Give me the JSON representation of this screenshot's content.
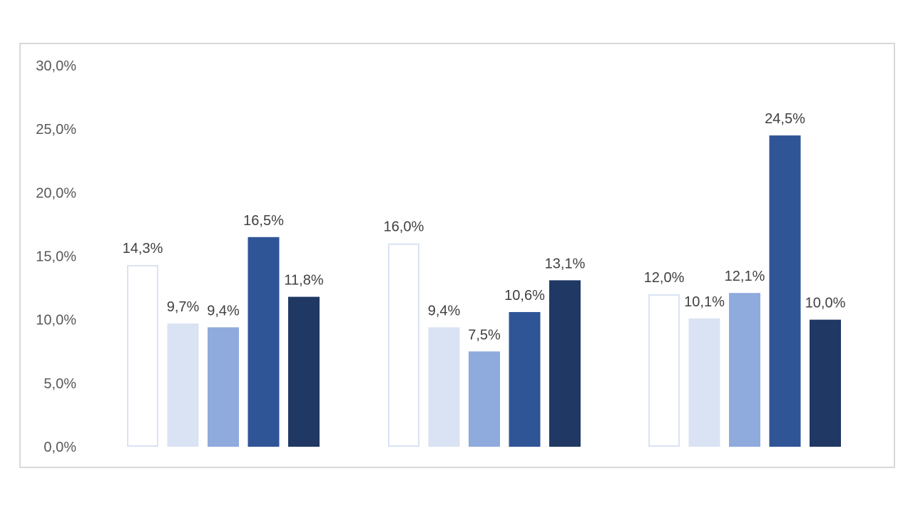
{
  "chart_data": {
    "type": "bar",
    "title": "",
    "xlabel": "",
    "ylabel": "",
    "ylim": [
      0,
      30
    ],
    "yticks": [
      0,
      5,
      10,
      15,
      20,
      25,
      30
    ],
    "ytick_labels": [
      "0,0%",
      "5,0%",
      "10,0%",
      "15,0%",
      "20,0%",
      "25,0%",
      "30,0%"
    ],
    "grid": false,
    "legend": "none",
    "categories": [
      "",
      "",
      ""
    ],
    "series": [
      {
        "fill": "#ffffff",
        "stroke": "#dae3f3",
        "values": [
          14.3,
          16.0,
          12.0
        ],
        "labels": [
          "14,3%",
          "16,0%",
          "12,0%"
        ]
      },
      {
        "fill": "#dae3f3",
        "stroke": "#dae3f3",
        "values": [
          9.7,
          9.4,
          10.1
        ],
        "labels": [
          "9,7%",
          "9,4%",
          "10,1%"
        ]
      },
      {
        "fill": "#8faadc",
        "stroke": "#8faadc",
        "values": [
          9.4,
          7.5,
          12.1
        ],
        "labels": [
          "9,4%",
          "7,5%",
          "12,1%"
        ]
      },
      {
        "fill": "#2f5597",
        "stroke": "#2f5597",
        "values": [
          16.5,
          10.6,
          24.5
        ],
        "labels": [
          "16,5%",
          "10,6%",
          "24,5%"
        ]
      },
      {
        "fill": "#203864",
        "stroke": "#203864",
        "values": [
          11.8,
          13.1,
          10.0
        ],
        "labels": [
          "11,8%",
          "13,1%",
          "10,0%"
        ]
      }
    ]
  }
}
